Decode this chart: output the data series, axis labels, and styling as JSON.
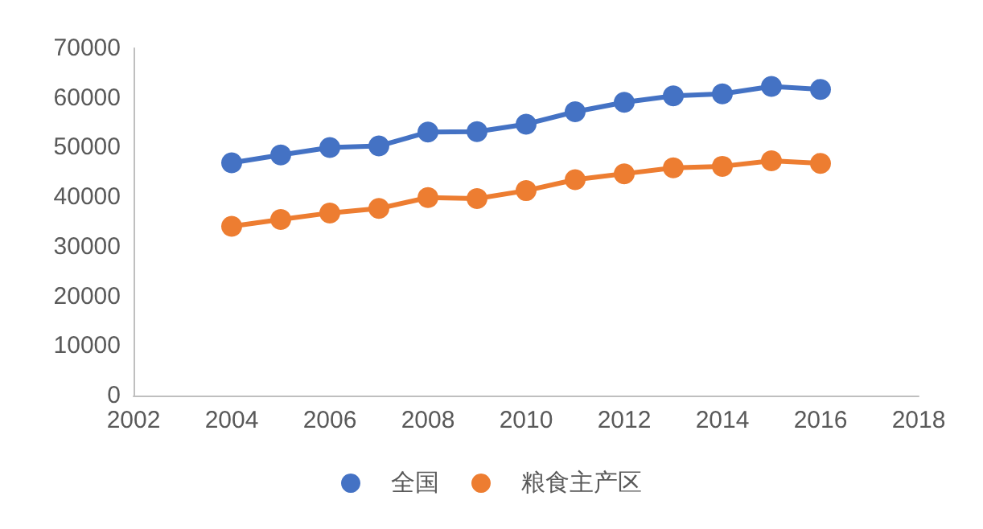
{
  "chart_data": {
    "type": "line",
    "x": [
      2004,
      2005,
      2006,
      2007,
      2008,
      2009,
      2010,
      2011,
      2012,
      2013,
      2014,
      2015,
      2016
    ],
    "series": [
      {
        "name": "全国",
        "color": "#4472c4",
        "values": [
          46900,
          48500,
          50000,
          50300,
          53100,
          53200,
          54700,
          57200,
          59100,
          60400,
          60800,
          62300,
          61700
        ]
      },
      {
        "name": "粮食主产区",
        "color": "#ed7d31",
        "values": [
          34100,
          35500,
          36800,
          37700,
          39900,
          39700,
          41300,
          43500,
          44700,
          45900,
          46200,
          47300,
          46800
        ]
      }
    ],
    "xlim": [
      2002,
      2018
    ],
    "xticks": [
      2002,
      2004,
      2006,
      2008,
      2010,
      2012,
      2014,
      2016,
      2018
    ],
    "ylim": [
      0,
      70000
    ],
    "yticks": [
      0,
      10000,
      20000,
      30000,
      40000,
      50000,
      60000,
      70000
    ],
    "grid": false,
    "legend": "bottom",
    "marker": "circle",
    "line_style": "solid"
  }
}
